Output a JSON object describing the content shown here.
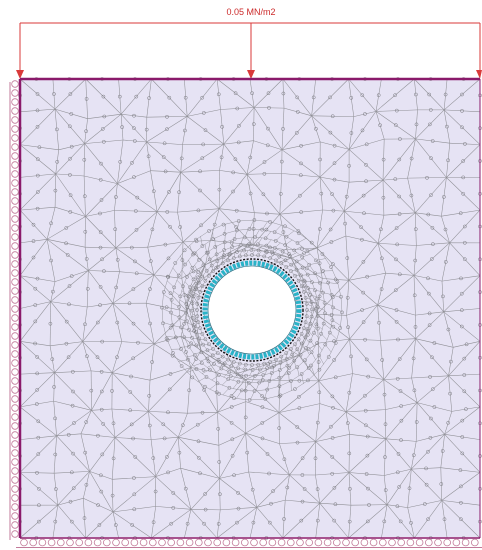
{
  "load": {
    "label": "0.05 MN/m2",
    "color": "#d93a3a"
  },
  "model": {
    "domain_fill": "#e6e3f4",
    "boundary_color": "#8a1a6a",
    "mesh_color": "#8f8f95",
    "node_color": "#7a7a80",
    "opening_liner_color": "#2ab3c8",
    "opening_edge_color": "#111111",
    "support_color": "#c27a9a"
  },
  "icons": {
    "load_arrow": "down-arrow-icon",
    "roller_support": "roller-support-icon"
  }
}
